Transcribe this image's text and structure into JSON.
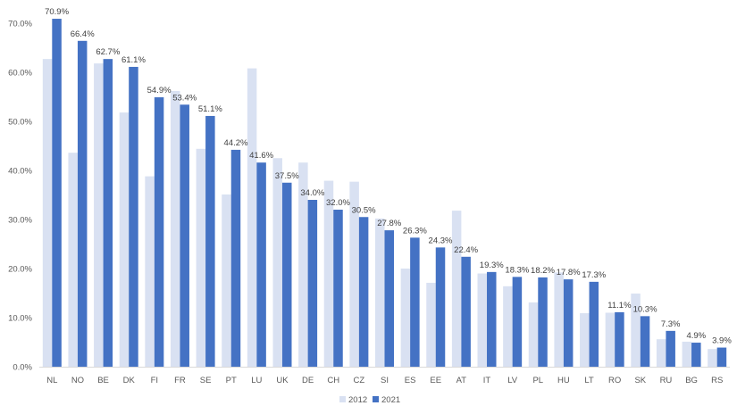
{
  "chart_data": {
    "type": "bar",
    "categories": [
      "NL",
      "NO",
      "BE",
      "DK",
      "FI",
      "FR",
      "SE",
      "PT",
      "LU",
      "UK",
      "DE",
      "CH",
      "CZ",
      "SI",
      "ES",
      "EE",
      "AT",
      "IT",
      "LV",
      "PL",
      "HU",
      "LT",
      "RO",
      "SK",
      "RU",
      "BG",
      "RS"
    ],
    "series": [
      {
        "name": "2012",
        "color": "#d9e1f2",
        "values": [
          62.7,
          43.6,
          61.8,
          51.8,
          38.8,
          56.2,
          44.4,
          35.1,
          60.8,
          42.5,
          41.6,
          37.9,
          37.7,
          30.2,
          20.0,
          17.1,
          31.8,
          19.0,
          16.4,
          13.1,
          19.2,
          10.9,
          11.0,
          14.9,
          5.6,
          5.1,
          3.6
        ]
      },
      {
        "name": "2021",
        "color": "#4472c4",
        "values": [
          70.9,
          66.4,
          62.7,
          61.1,
          54.9,
          53.4,
          51.1,
          44.2,
          41.6,
          37.5,
          34.0,
          32.0,
          30.5,
          27.8,
          26.3,
          24.3,
          22.4,
          19.3,
          18.3,
          18.2,
          17.8,
          17.3,
          11.1,
          10.3,
          7.3,
          4.9,
          3.9
        ],
        "data_labels": [
          "70.9%",
          "66.4%",
          "62.7%",
          "61.1%",
          "54.9%",
          "53.4%",
          "51.1%",
          "44.2%",
          "41.6%",
          "37.5%",
          "34.0%",
          "32.0%",
          "30.5%",
          "27.8%",
          "26.3%",
          "24.3%",
          "22.4%",
          "19.3%",
          "18.3%",
          "18.2%",
          "17.8%",
          "17.3%",
          "11.1%",
          "10.3%",
          "7.3%",
          "4.9%",
          "3.9%"
        ]
      }
    ],
    "yticks": [
      "0.0%",
      "10.0%",
      "20.0%",
      "30.0%",
      "40.0%",
      "50.0%",
      "60.0%",
      "70.0%"
    ],
    "ylim": [
      0,
      72
    ],
    "gridlines": false,
    "legend": {
      "position": "bottom",
      "entries": [
        "2012",
        "2021"
      ]
    },
    "title": "",
    "xlabel": "",
    "ylabel": ""
  }
}
